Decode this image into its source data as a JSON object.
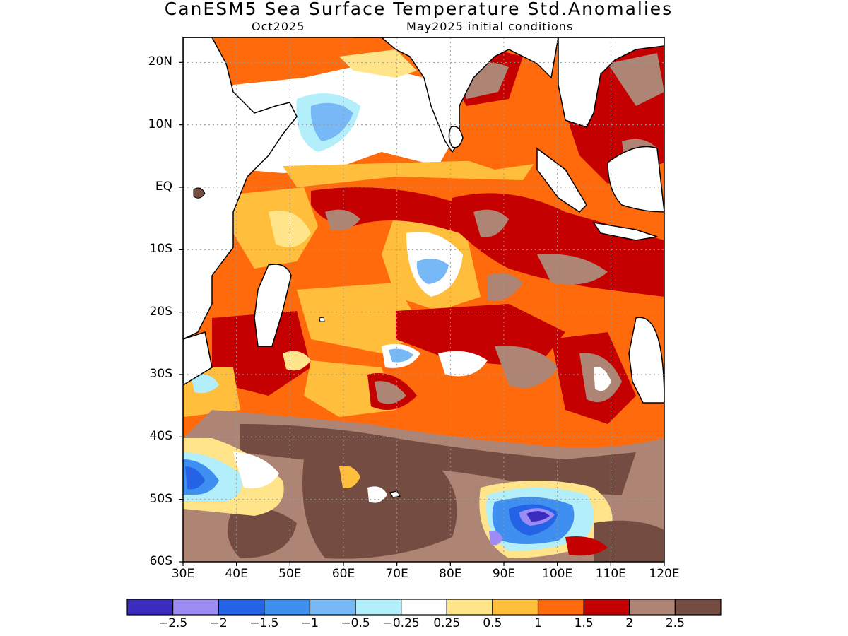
{
  "title": "CanESM5 Sea Surface Temperature Std.Anomalies",
  "subtitle_left": "Oct2025",
  "subtitle_right": "May2025 initial conditions",
  "map": {
    "projection": "lat-lon",
    "lon_range": [
      30,
      120
    ],
    "lat_range": [
      -60,
      24
    ],
    "grid": true,
    "lat_ticks": [
      "20N",
      "10N",
      "EQ",
      "10S",
      "20S",
      "30S",
      "40S",
      "50S",
      "60S"
    ],
    "lon_ticks": [
      "30E",
      "40E",
      "50E",
      "60E",
      "70E",
      "80E",
      "90E",
      "100E",
      "110E",
      "120E"
    ]
  },
  "colorbar": {
    "colors": [
      "#3a2cbf",
      "#9c8cf4",
      "#2563e6",
      "#3e8ff0",
      "#77b8f6",
      "#b3eefb",
      "#ffffff",
      "#ffe48a",
      "#ffbf3c",
      "#ff6a0d",
      "#c40000",
      "#ae8474",
      "#744c42"
    ],
    "labels": [
      "-2.5",
      "-2",
      "-1.5",
      "-1",
      "-0.5",
      "-0.25",
      "0.25",
      "0.5",
      "1",
      "1.5",
      "2",
      "2.5"
    ]
  }
}
